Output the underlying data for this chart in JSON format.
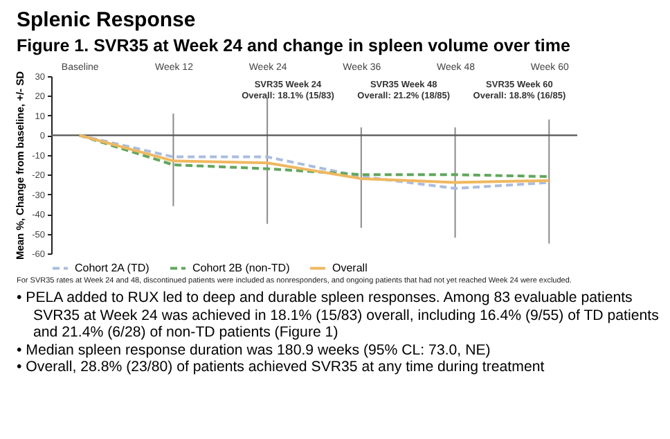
{
  "chart_data": {
    "type": "line",
    "title": "Splenic Response",
    "subtitle": "Figure 1. SVR35 at Week 24 and change in spleen volume over time",
    "ylabel": "Mean %, Change from baseline, +/- SD",
    "categories": [
      "Baseline",
      "Week 12",
      "Week 24",
      "Week 36",
      "Week 48",
      "Week 60"
    ],
    "series": [
      {
        "name": "Cohort 2A (TD)",
        "color": "#a9bde0",
        "line_style": "dashed",
        "values": [
          0,
          -11,
          -11,
          -21,
          -27,
          -24
        ]
      },
      {
        "name": "Cohort 2B (non-TD)",
        "color": "#5fa85a",
        "line_style": "dashed",
        "values": [
          0,
          -15,
          -17,
          -20,
          -20,
          -21
        ]
      },
      {
        "name": "Overall",
        "color": "#f0b860",
        "line_style": "solid",
        "values": [
          0,
          -13,
          -14,
          -22,
          -24,
          -23
        ],
        "errors": [
          null,
          [
            -36,
            11
          ],
          [
            -45,
            19
          ],
          [
            -47,
            4
          ],
          [
            -52,
            4
          ],
          [
            -55,
            8
          ]
        ]
      }
    ],
    "ylim": [
      -60,
      30
    ],
    "yticks": [
      -60,
      -50,
      -40,
      -30,
      -20,
      -10,
      0,
      10,
      20,
      30
    ],
    "ref_lines": [
      {
        "axis": "y",
        "value": 0,
        "label": null
      }
    ],
    "legend": "bottom",
    "marker": "none",
    "grid": false,
    "annotations": [
      "SVR35 Week 24\nOverall: 18.1% (15/83)",
      "SVR35 Week 48\nOverall: 21.2% (18/85)",
      "SVR35 Week 60\nOverall: 18.8% (16/85)",
      "For SVR35 rates at Week 24 and 48, discontinued patients were included as nonresponders, and ongoing patients that had not yet reached Week 24 were excluded.",
      "• PELA added to RUX led to deep and durable spleen responses. Among 83 evaluable patients SVR35 at Week 24 was achieved in 18.1% (15/83) overall, including 16.4% (9/55) of TD patients and 21.4% (6/28) of non-TD patients (Figure 1)",
      "• Median spleen response duration was 180.9 weeks (95% CL: 73.0, NE)",
      "• Overall, 28.8% (23/80) of patients achieved SVR35 at any time during treatment"
    ]
  }
}
